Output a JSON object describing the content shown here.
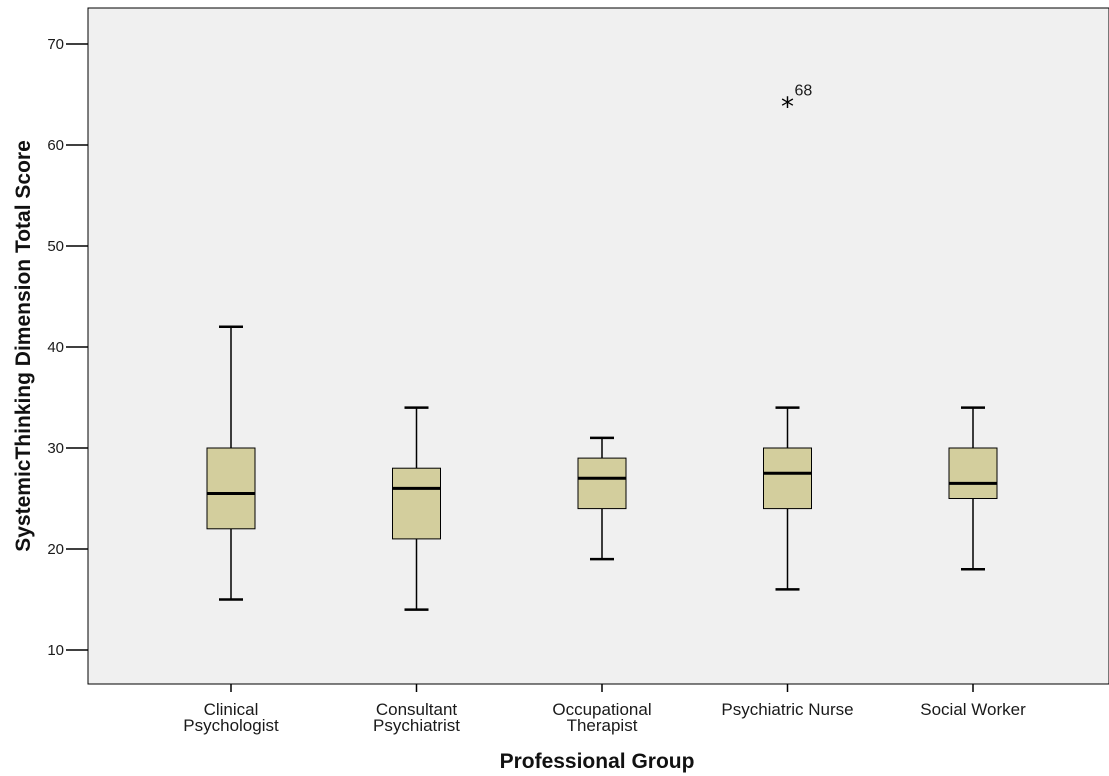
{
  "chart_data": {
    "type": "boxplot",
    "xlabel": "Professional Group",
    "ylabel": "SystemicThinking Dimension Total Score",
    "ylim": [
      6.5,
      73.5
    ],
    "yticks": [
      10,
      20,
      30,
      40,
      50,
      60,
      70
    ],
    "grid": false,
    "colors": {
      "plot_background": "#f0f0f0",
      "box_fill": "#d3ce9d",
      "line": "#000000"
    },
    "categories": [
      {
        "label_lines": [
          "Clinical",
          "Psychologist"
        ],
        "whisker_low": 15,
        "q1": 22,
        "median": 25.5,
        "q3": 30,
        "whisker_high": 42,
        "outliers": []
      },
      {
        "label_lines": [
          "Consultant",
          "Psychiatrist"
        ],
        "whisker_low": 14,
        "q1": 21,
        "median": 26,
        "q3": 28,
        "whisker_high": 34,
        "outliers": []
      },
      {
        "label_lines": [
          "Occupational",
          "Therapist"
        ],
        "whisker_low": 19,
        "q1": 24,
        "median": 27,
        "q3": 29,
        "whisker_high": 31,
        "outliers": []
      },
      {
        "label_lines": [
          "Psychiatric Nurse"
        ],
        "whisker_low": 16,
        "q1": 24,
        "median": 27.5,
        "q3": 30,
        "whisker_high": 34,
        "outliers": [
          {
            "value": 64,
            "label": "68",
            "marker": "*"
          }
        ]
      },
      {
        "label_lines": [
          "Social Worker"
        ],
        "whisker_low": 18,
        "q1": 25,
        "median": 26.5,
        "q3": 30,
        "whisker_high": 34,
        "outliers": []
      }
    ]
  }
}
